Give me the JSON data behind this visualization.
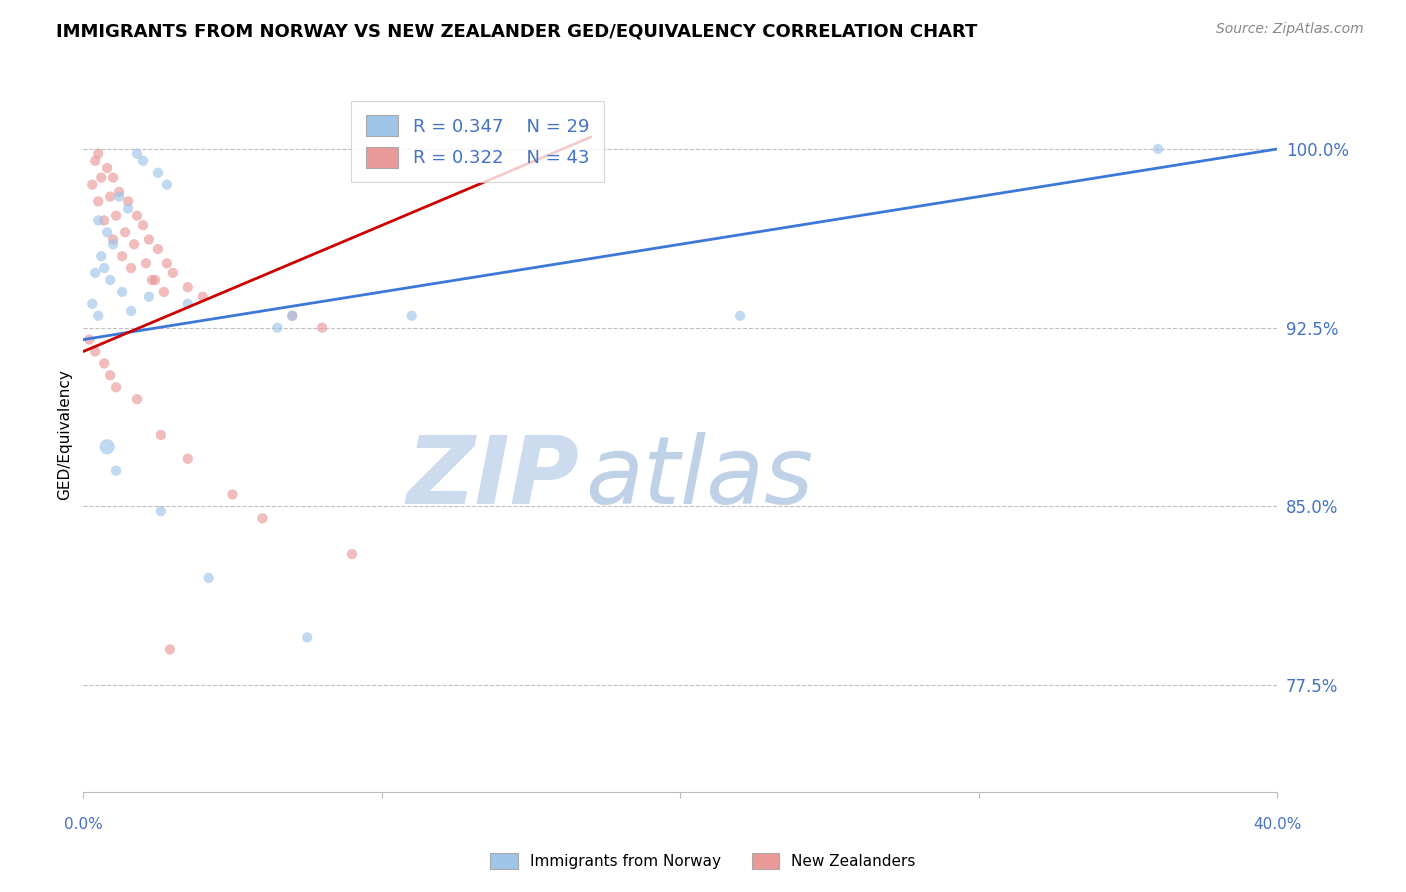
{
  "title": "IMMIGRANTS FROM NORWAY VS NEW ZEALANDER GED/EQUIVALENCY CORRELATION CHART",
  "source": "Source: ZipAtlas.com",
  "ylabel": "GED/Equivalency",
  "yticks": [
    77.5,
    85.0,
    92.5,
    100.0
  ],
  "xlim": [
    0.0,
    40.0
  ],
  "ylim": [
    73.0,
    103.0
  ],
  "legend_blue_r": "R = 0.347",
  "legend_blue_n": "N = 29",
  "legend_pink_r": "R = 0.322",
  "legend_pink_n": "N = 43",
  "blue_color": "#9fc5e8",
  "pink_color": "#ea9999",
  "trendline_blue": "#3c78d8",
  "trendline_pink": "#cc0000",
  "blue_scatter_x": [
    1.8,
    2.0,
    2.5,
    2.8,
    1.2,
    1.5,
    0.5,
    0.8,
    1.0,
    0.6,
    0.7,
    0.4,
    0.9,
    1.3,
    0.3,
    0.5,
    2.2,
    1.6,
    3.5,
    7.0,
    6.5,
    11.0,
    22.0,
    36.0,
    0.8,
    1.1,
    2.6,
    4.2,
    7.5
  ],
  "blue_scatter_y": [
    99.8,
    99.5,
    99.0,
    98.5,
    98.0,
    97.5,
    97.0,
    96.5,
    96.0,
    95.5,
    95.0,
    94.8,
    94.5,
    94.0,
    93.5,
    93.0,
    93.8,
    93.2,
    93.5,
    93.0,
    92.5,
    93.0,
    93.0,
    100.0,
    87.5,
    86.5,
    84.8,
    82.0,
    79.5
  ],
  "blue_scatter_size": [
    55,
    55,
    55,
    55,
    55,
    55,
    55,
    55,
    55,
    55,
    55,
    55,
    55,
    55,
    55,
    55,
    55,
    55,
    55,
    55,
    55,
    55,
    55,
    55,
    120,
    55,
    55,
    55,
    55
  ],
  "pink_scatter_x": [
    0.5,
    0.8,
    1.0,
    1.2,
    1.5,
    1.8,
    2.0,
    2.2,
    2.5,
    2.8,
    3.0,
    3.5,
    4.0,
    0.4,
    0.6,
    0.9,
    1.1,
    1.4,
    1.7,
    2.1,
    2.4,
    2.7,
    0.3,
    0.5,
    0.7,
    1.0,
    1.3,
    1.6,
    2.3,
    7.0,
    8.0,
    0.2,
    0.4,
    0.7,
    0.9,
    1.1,
    1.8,
    2.6,
    3.5,
    5.0,
    6.0,
    9.0,
    2.9
  ],
  "pink_scatter_y": [
    99.8,
    99.2,
    98.8,
    98.2,
    97.8,
    97.2,
    96.8,
    96.2,
    95.8,
    95.2,
    94.8,
    94.2,
    93.8,
    99.5,
    98.8,
    98.0,
    97.2,
    96.5,
    96.0,
    95.2,
    94.5,
    94.0,
    98.5,
    97.8,
    97.0,
    96.2,
    95.5,
    95.0,
    94.5,
    93.0,
    92.5,
    92.0,
    91.5,
    91.0,
    90.5,
    90.0,
    89.5,
    88.0,
    87.0,
    85.5,
    84.5,
    83.0,
    79.0
  ],
  "pink_scatter_size": [
    55,
    55,
    55,
    55,
    55,
    55,
    55,
    55,
    55,
    55,
    55,
    55,
    55,
    55,
    55,
    55,
    55,
    55,
    55,
    55,
    55,
    55,
    55,
    55,
    55,
    55,
    55,
    55,
    55,
    55,
    55,
    55,
    55,
    55,
    55,
    55,
    55,
    55,
    55,
    55,
    55,
    55,
    55
  ],
  "blue_trend_x": [
    0.0,
    40.0
  ],
  "blue_trend_y": [
    92.0,
    100.0
  ],
  "pink_trend_x": [
    0.0,
    17.0
  ],
  "pink_trend_y": [
    91.5,
    100.5
  ],
  "watermark_zip": "ZIP",
  "watermark_atlas": "atlas",
  "background_color": "#ffffff",
  "grid_color": "#c0c0c0",
  "title_fontsize": 13,
  "source_fontsize": 10,
  "axis_label_color": "#4472c4"
}
